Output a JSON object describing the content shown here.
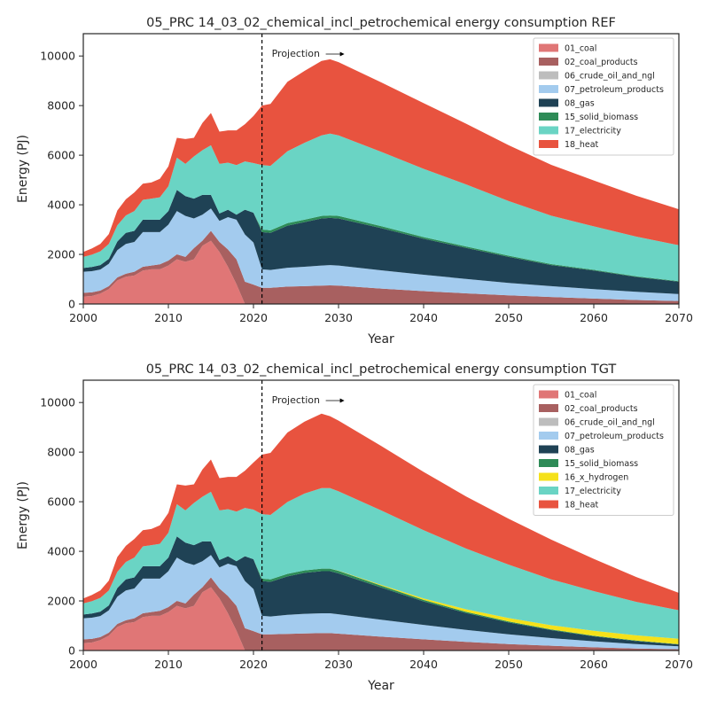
{
  "chart_data": [
    {
      "type": "area",
      "stacked": true,
      "title": "05_PRC 14_03_02_chemical_incl_petrochemical energy consumption REF",
      "xlabel": "Year",
      "ylabel": "Energy (PJ)",
      "xlim": [
        2000,
        2070
      ],
      "ylim": [
        0,
        10900
      ],
      "xticks": [
        2000,
        2010,
        2020,
        2030,
        2040,
        2050,
        2060,
        2070
      ],
      "yticks": [
        0,
        2000,
        4000,
        6000,
        8000,
        10000
      ],
      "projection_year": 2021,
      "projection_label": "Projection",
      "legend_position": "upper right",
      "x": [
        2000,
        2001,
        2002,
        2003,
        2004,
        2005,
        2006,
        2007,
        2008,
        2009,
        2010,
        2011,
        2012,
        2013,
        2014,
        2015,
        2016,
        2017,
        2018,
        2019,
        2020,
        2021,
        2022,
        2024,
        2026,
        2028,
        2029,
        2030,
        2035,
        2040,
        2045,
        2050,
        2055,
        2060,
        2065,
        2070
      ],
      "series": [
        {
          "name": "01_coal",
          "color": "#e07676",
          "values": [
            300,
            320,
            420,
            600,
            950,
            1100,
            1150,
            1350,
            1400,
            1400,
            1550,
            1800,
            1700,
            1800,
            2350,
            2550,
            2100,
            1500,
            800,
            0,
            0,
            0,
            0,
            0,
            0,
            0,
            0,
            0,
            0,
            0,
            0,
            0,
            0,
            0,
            0,
            0
          ]
        },
        {
          "name": "02_coal_products",
          "color": "#a86060",
          "values": [
            150,
            150,
            120,
            120,
            120,
            120,
            150,
            150,
            150,
            200,
            200,
            200,
            200,
            450,
            200,
            400,
            400,
            700,
            1000,
            900,
            780,
            650,
            650,
            700,
            720,
            740,
            750,
            740,
            620,
            520,
            430,
            350,
            280,
            220,
            160,
            120
          ]
        },
        {
          "name": "06_crude_oil_and_ngl",
          "color": "#bdbdbd",
          "values": [
            0,
            0,
            0,
            0,
            0,
            0,
            0,
            0,
            0,
            0,
            0,
            0,
            0,
            0,
            0,
            0,
            0,
            0,
            0,
            0,
            0,
            0,
            0,
            0,
            0,
            0,
            0,
            0,
            0,
            0,
            0,
            0,
            0,
            0,
            0,
            0
          ]
        },
        {
          "name": "07_petroleum_products",
          "color": "#a3cbee",
          "values": [
            850,
            850,
            850,
            900,
            1100,
            1200,
            1200,
            1400,
            1350,
            1300,
            1450,
            1750,
            1650,
            1200,
            1050,
            900,
            850,
            1300,
            1600,
            1900,
            1700,
            750,
            720,
            760,
            780,
            810,
            820,
            810,
            740,
            660,
            580,
            500,
            440,
            380,
            330,
            280
          ]
        },
        {
          "name": "08_gas",
          "color": "#1f4255",
          "values": [
            150,
            170,
            180,
            200,
            350,
            450,
            450,
            500,
            500,
            500,
            550,
            850,
            800,
            800,
            800,
            550,
            300,
            300,
            200,
            1000,
            1200,
            1500,
            1500,
            1700,
            1800,
            1900,
            1900,
            1900,
            1700,
            1450,
            1250,
            1050,
            850,
            750,
            600,
            500
          ]
        },
        {
          "name": "15_solid_biomass",
          "color": "#2e8b57",
          "values": [
            0,
            0,
            0,
            0,
            0,
            0,
            0,
            0,
            0,
            0,
            0,
            0,
            0,
            0,
            0,
            0,
            0,
            0,
            0,
            0,
            0,
            100,
            100,
            100,
            100,
            100,
            100,
            100,
            80,
            70,
            60,
            50,
            40,
            30,
            25,
            20
          ]
        },
        {
          "name": "17_electricity",
          "color": "#6ad4c4",
          "values": [
            450,
            500,
            550,
            600,
            650,
            700,
            800,
            800,
            850,
            900,
            1000,
            1300,
            1300,
            1700,
            1800,
            2000,
            2000,
            1900,
            2000,
            1950,
            2000,
            2600,
            2600,
            2900,
            3100,
            3250,
            3300,
            3250,
            3000,
            2750,
            2500,
            2200,
            1950,
            1750,
            1600,
            1450
          ]
        },
        {
          "name": "18_heat",
          "color": "#e8533f",
          "values": [
            200,
            250,
            300,
            400,
            600,
            650,
            750,
            650,
            650,
            750,
            800,
            800,
            1000,
            750,
            1100,
            1300,
            1300,
            1300,
            1400,
            1500,
            1900,
            2400,
            2500,
            2800,
            2900,
            3000,
            3000,
            2950,
            2800,
            2650,
            2450,
            2250,
            2050,
            1850,
            1650,
            1450
          ]
        }
      ]
    },
    {
      "type": "area",
      "stacked": true,
      "title": "05_PRC 14_03_02_chemical_incl_petrochemical energy consumption TGT",
      "xlabel": "Year",
      "ylabel": "Energy (PJ)",
      "xlim": [
        2000,
        2070
      ],
      "ylim": [
        0,
        10900
      ],
      "xticks": [
        2000,
        2010,
        2020,
        2030,
        2040,
        2050,
        2060,
        2070
      ],
      "yticks": [
        0,
        2000,
        4000,
        6000,
        8000,
        10000
      ],
      "projection_year": 2021,
      "projection_label": "Projection",
      "legend_position": "upper right",
      "x": [
        2000,
        2001,
        2002,
        2003,
        2004,
        2005,
        2006,
        2007,
        2008,
        2009,
        2010,
        2011,
        2012,
        2013,
        2014,
        2015,
        2016,
        2017,
        2018,
        2019,
        2020,
        2021,
        2022,
        2024,
        2026,
        2028,
        2029,
        2030,
        2035,
        2040,
        2045,
        2050,
        2055,
        2060,
        2065,
        2070
      ],
      "series": [
        {
          "name": "01_coal",
          "color": "#e07676",
          "values": [
            300,
            320,
            420,
            600,
            950,
            1100,
            1150,
            1350,
            1400,
            1400,
            1550,
            1800,
            1700,
            1800,
            2350,
            2550,
            2100,
            1500,
            800,
            0,
            0,
            0,
            0,
            0,
            0,
            0,
            0,
            0,
            0,
            0,
            0,
            0,
            0,
            0,
            0,
            0
          ]
        },
        {
          "name": "02_coal_products",
          "color": "#a86060",
          "values": [
            150,
            150,
            120,
            120,
            120,
            120,
            150,
            150,
            150,
            200,
            200,
            200,
            200,
            450,
            200,
            400,
            400,
            700,
            1000,
            900,
            780,
            650,
            650,
            670,
            690,
            700,
            700,
            680,
            560,
            450,
            350,
            260,
            190,
            130,
            80,
            50
          ]
        },
        {
          "name": "06_crude_oil_and_ngl",
          "color": "#bdbdbd",
          "values": [
            0,
            0,
            0,
            0,
            0,
            0,
            0,
            0,
            0,
            0,
            0,
            0,
            0,
            0,
            0,
            0,
            0,
            0,
            0,
            0,
            0,
            0,
            0,
            0,
            0,
            0,
            0,
            0,
            0,
            0,
            0,
            0,
            0,
            0,
            0,
            0
          ]
        },
        {
          "name": "07_petroleum_products",
          "color": "#a3cbee",
          "values": [
            850,
            850,
            850,
            900,
            1100,
            1200,
            1200,
            1400,
            1350,
            1300,
            1450,
            1750,
            1650,
            1200,
            1050,
            900,
            850,
            1300,
            1600,
            1900,
            1700,
            750,
            720,
            770,
            790,
            800,
            800,
            780,
            680,
            580,
            480,
            390,
            310,
            240,
            180,
            120
          ]
        },
        {
          "name": "08_gas",
          "color": "#1f4255",
          "values": [
            150,
            170,
            180,
            200,
            350,
            450,
            450,
            500,
            500,
            500,
            550,
            850,
            800,
            800,
            800,
            550,
            300,
            300,
            200,
            1000,
            1200,
            1400,
            1400,
            1550,
            1650,
            1700,
            1700,
            1650,
            1300,
            950,
            680,
            480,
            320,
            200,
            120,
            70
          ]
        },
        {
          "name": "15_solid_biomass",
          "color": "#2e8b57",
          "values": [
            0,
            0,
            0,
            0,
            0,
            0,
            0,
            0,
            0,
            0,
            0,
            0,
            0,
            0,
            0,
            0,
            0,
            0,
            0,
            0,
            0,
            100,
            100,
            100,
            100,
            100,
            100,
            100,
            80,
            60,
            50,
            40,
            30,
            25,
            20,
            15
          ]
        },
        {
          "name": "16_x_hydrogen",
          "color": "#f5e11a",
          "values": [
            0,
            0,
            0,
            0,
            0,
            0,
            0,
            0,
            0,
            0,
            0,
            0,
            0,
            0,
            0,
            0,
            0,
            0,
            0,
            0,
            0,
            0,
            0,
            0,
            0,
            0,
            0,
            10,
            30,
            60,
            100,
            140,
            170,
            200,
            210,
            220
          ]
        },
        {
          "name": "17_electricity",
          "color": "#6ad4c4",
          "values": [
            450,
            500,
            550,
            600,
            650,
            700,
            800,
            800,
            850,
            900,
            1000,
            1300,
            1300,
            1700,
            1800,
            2000,
            2000,
            1900,
            2000,
            1950,
            2000,
            2600,
            2600,
            2900,
            3100,
            3250,
            3250,
            3200,
            3000,
            2750,
            2450,
            2150,
            1850,
            1600,
            1350,
            1150
          ]
        },
        {
          "name": "18_heat",
          "color": "#e8533f",
          "values": [
            200,
            250,
            300,
            400,
            600,
            650,
            750,
            650,
            650,
            750,
            800,
            800,
            1000,
            750,
            1100,
            1300,
            1300,
            1300,
            1400,
            1500,
            1900,
            2400,
            2500,
            2800,
            2900,
            3000,
            2900,
            2850,
            2600,
            2350,
            2100,
            1850,
            1600,
            1300,
            1000,
            700
          ]
        }
      ]
    }
  ]
}
